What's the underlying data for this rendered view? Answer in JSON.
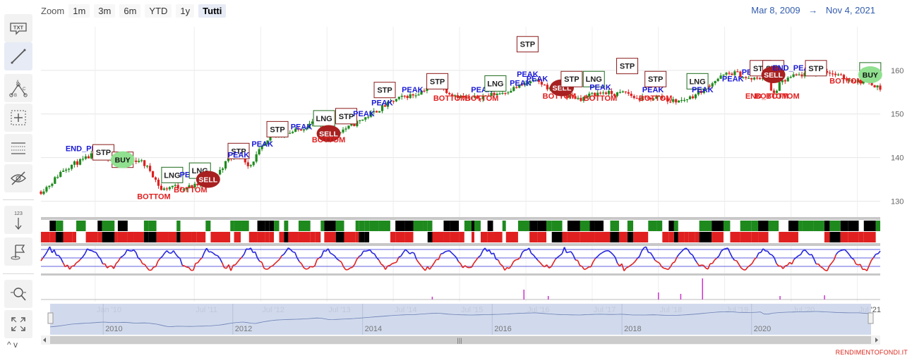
{
  "toolbar": {
    "tools": [
      {
        "name": "annotation-text-tool",
        "icon": "txt-icon",
        "label": "TXT"
      },
      {
        "name": "line-tool",
        "icon": "line-icon"
      },
      {
        "name": "fibonacci-tool",
        "icon": "abc-pattern-icon",
        "labels": [
          "A",
          "B",
          "C"
        ]
      },
      {
        "name": "crosshair-tool",
        "icon": "crosshair-icon"
      },
      {
        "name": "indicators-tool",
        "icon": "indicators-icon"
      },
      {
        "name": "hide-toggle",
        "icon": "eye-slash-icon"
      },
      {
        "name": "vertical-counter-tool",
        "icon": "vertical-counter-icon",
        "label": "123"
      },
      {
        "name": "flag-tool",
        "icon": "flag-icon"
      },
      {
        "name": "zoom-change-tool",
        "icon": "zoom-change-icon"
      },
      {
        "name": "fullscreen-tool",
        "icon": "fullscreen-icon"
      }
    ],
    "scroll_arrows": "^ v"
  },
  "zoom": {
    "label": "Zoom",
    "buttons": [
      "1m",
      "3m",
      "6m",
      "YTD",
      "1y",
      "Tutti"
    ],
    "selected": "Tutti"
  },
  "range": {
    "from": "Mar 8, 2009",
    "arrow": "→",
    "to": "Nov 4, 2021"
  },
  "footer": "RENDIMENTOFONDI.IT",
  "colors": {
    "up": "#1e8a1e",
    "down": "#e02020",
    "signal_label": "#1a1ad6",
    "bottom_label": "#e02020",
    "sell": "#a82020",
    "buy": "#90e090",
    "osc_blue": "#2424e0",
    "osc_red": "#e02020",
    "volume": "#cc33cc",
    "navigator_fill": "#ccd6eb"
  },
  "chart_data": {
    "type": "candlestick",
    "y_ticks": [
      130,
      140,
      150,
      160
    ],
    "ylim": [
      127,
      170
    ],
    "x_start": "2009-03-08",
    "x_end": "2021-11-04",
    "x_ticks": [
      "Jan '10",
      "Jul '11",
      "Jul '12",
      "Jul '13",
      "Jul '14",
      "Jul '15",
      "Jul '16",
      "Jul '17",
      "Jul '18",
      "Jul '19",
      "Jul '20",
      "Jul '21"
    ],
    "x_tick_dates": [
      "2010-01-01",
      "2011-07-01",
      "2012-07-01",
      "2013-07-01",
      "2014-07-01",
      "2015-07-01",
      "2016-07-01",
      "2017-07-01",
      "2018-07-01",
      "2019-07-01",
      "2020-07-01",
      "2021-07-01"
    ],
    "price_series": [
      [
        "2009-03-08",
        132.2
      ],
      [
        "2009-05-01",
        134
      ],
      [
        "2009-07-01",
        137
      ],
      [
        "2009-09-01",
        138.5
      ],
      [
        "2009-11-01",
        139.5
      ],
      [
        "2010-01-01",
        141
      ],
      [
        "2010-03-01",
        140
      ],
      [
        "2010-05-01",
        140.5
      ],
      [
        "2010-07-01",
        139
      ],
      [
        "2010-09-01",
        139.5
      ],
      [
        "2010-11-01",
        137
      ],
      [
        "2011-01-01",
        132.5
      ],
      [
        "2011-03-01",
        133.5
      ],
      [
        "2011-05-01",
        133
      ],
      [
        "2011-07-01",
        133.5
      ],
      [
        "2011-09-01",
        134.2
      ],
      [
        "2011-11-01",
        136
      ],
      [
        "2012-01-01",
        139.5
      ],
      [
        "2012-03-01",
        141
      ],
      [
        "2012-05-01",
        138
      ],
      [
        "2012-07-01",
        142
      ],
      [
        "2012-09-01",
        144.5
      ],
      [
        "2012-11-01",
        145.5
      ],
      [
        "2013-01-01",
        146
      ],
      [
        "2013-03-01",
        147
      ],
      [
        "2013-05-01",
        148.5
      ],
      [
        "2013-07-01",
        145
      ],
      [
        "2013-09-01",
        146
      ],
      [
        "2013-11-01",
        147
      ],
      [
        "2014-01-01",
        148.5
      ],
      [
        "2014-03-01",
        150
      ],
      [
        "2014-05-01",
        151.5
      ],
      [
        "2014-07-01",
        153
      ],
      [
        "2014-09-01",
        154
      ],
      [
        "2014-11-01",
        154.5
      ],
      [
        "2015-01-01",
        156
      ],
      [
        "2015-03-01",
        157
      ],
      [
        "2015-05-01",
        155
      ],
      [
        "2015-07-01",
        154
      ],
      [
        "2015-09-01",
        153.5
      ],
      [
        "2015-11-01",
        154
      ],
      [
        "2016-01-01",
        154.5
      ],
      [
        "2016-03-01",
        155
      ],
      [
        "2016-05-01",
        156
      ],
      [
        "2016-07-01",
        157
      ],
      [
        "2016-09-01",
        157.5
      ],
      [
        "2016-11-01",
        156
      ],
      [
        "2017-01-01",
        154.5
      ],
      [
        "2017-03-01",
        154
      ],
      [
        "2017-05-01",
        153.5
      ],
      [
        "2017-07-01",
        154.5
      ],
      [
        "2017-09-01",
        155
      ],
      [
        "2017-11-01",
        154.5
      ],
      [
        "2018-01-01",
        155
      ],
      [
        "2018-03-01",
        153.5
      ],
      [
        "2018-05-01",
        153.5
      ],
      [
        "2018-07-01",
        154
      ],
      [
        "2018-09-01",
        153
      ],
      [
        "2018-11-01",
        153
      ],
      [
        "2019-01-01",
        154
      ],
      [
        "2019-03-01",
        155.5
      ],
      [
        "2019-05-01",
        157.5
      ],
      [
        "2019-07-01",
        159
      ],
      [
        "2019-09-01",
        159.5
      ],
      [
        "2019-11-01",
        158
      ],
      [
        "2020-01-01",
        158
      ],
      [
        "2020-02-20",
        159
      ],
      [
        "2020-03-20",
        154
      ],
      [
        "2020-05-01",
        157
      ],
      [
        "2020-07-01",
        158.5
      ],
      [
        "2020-09-01",
        159
      ],
      [
        "2020-11-01",
        159.5
      ],
      [
        "2021-01-01",
        160
      ],
      [
        "2021-03-01",
        159
      ],
      [
        "2021-05-01",
        158
      ],
      [
        "2021-07-01",
        157.5
      ],
      [
        "2021-09-01",
        157.5
      ],
      [
        "2021-11-04",
        155.8
      ]
    ],
    "signals": [
      {
        "date": "2009-11-15",
        "label": "END_PEAK",
        "kind": "peak",
        "price": 141.5
      },
      {
        "date": "2010-02-15",
        "label": "STP",
        "kind": "stp",
        "price": 141.2
      },
      {
        "date": "2010-06-01",
        "label": "STP",
        "kind": "stp",
        "price": 139.5
      },
      {
        "date": "2010-06-01",
        "label": "BUY",
        "kind": "buy",
        "price": 139.5
      },
      {
        "date": "2010-11-20",
        "label": "BOTTOM",
        "kind": "bottom",
        "price": 130.5
      },
      {
        "date": "2011-03-01",
        "label": "LNG",
        "kind": "lng",
        "price": 136
      },
      {
        "date": "2011-06-10",
        "label": "BOTTOM",
        "kind": "bottom",
        "price": 132
      },
      {
        "date": "2011-06-10",
        "label": "PEAK",
        "kind": "peak",
        "price": 135.5
      },
      {
        "date": "2011-08-01",
        "label": "LNG",
        "kind": "lng",
        "price": 137
      },
      {
        "date": "2011-09-15",
        "label": "SELL",
        "kind": "sell",
        "price": 135
      },
      {
        "date": "2012-03-01",
        "label": "STP",
        "kind": "stp",
        "price": 141.5
      },
      {
        "date": "2012-03-01",
        "label": "PEAK",
        "kind": "peak",
        "price": 140
      },
      {
        "date": "2012-07-10",
        "label": "PEAK",
        "kind": "peak",
        "price": 142.5
      },
      {
        "date": "2012-10-01",
        "label": "PEAK",
        "kind": "peak",
        "price": 145
      },
      {
        "date": "2012-10-01",
        "label": "STP",
        "kind": "stp",
        "price": 146.5
      },
      {
        "date": "2013-02-10",
        "label": "PEAK",
        "kind": "peak",
        "price": 146.5
      },
      {
        "date": "2013-06-15",
        "label": "LNG",
        "kind": "lng",
        "price": 149
      },
      {
        "date": "2013-07-10",
        "label": "SELL",
        "kind": "sell",
        "price": 145.5
      },
      {
        "date": "2013-07-10",
        "label": "BOTTOM",
        "kind": "bottom",
        "price": 143.5
      },
      {
        "date": "2013-10-15",
        "label": "STP",
        "kind": "stp",
        "price": 149.5
      },
      {
        "date": "2014-01-20",
        "label": "PEAK",
        "kind": "peak",
        "price": 149.5
      },
      {
        "date": "2014-05-01",
        "label": "PEAK",
        "kind": "peak",
        "price": 152
      },
      {
        "date": "2014-05-15",
        "label": "STP",
        "kind": "stp",
        "price": 155.5
      },
      {
        "date": "2014-10-15",
        "label": "PEAK",
        "kind": "peak",
        "price": 155
      },
      {
        "date": "2015-03-01",
        "label": "PEAK",
        "kind": "peak",
        "price": 157.5
      },
      {
        "date": "2015-03-01",
        "label": "STP",
        "kind": "stp",
        "price": 157.5
      },
      {
        "date": "2015-05-10",
        "label": "BOTTOM",
        "kind": "bottom",
        "price": 153
      },
      {
        "date": "2015-11-01",
        "label": "PEAK",
        "kind": "peak",
        "price": 155
      },
      {
        "date": "2015-11-01",
        "label": "BOTTOM",
        "kind": "bottom",
        "price": 153
      },
      {
        "date": "2016-01-15",
        "label": "LNG",
        "kind": "lng",
        "price": 157
      },
      {
        "date": "2016-06-01",
        "label": "PEAK",
        "kind": "peak",
        "price": 156.5
      },
      {
        "date": "2016-07-10",
        "label": "STP",
        "kind": "stp",
        "price": 166
      },
      {
        "date": "2016-07-10",
        "label": "PEAK",
        "kind": "peak",
        "price": 158.5
      },
      {
        "date": "2016-09-01",
        "label": "PEAK",
        "kind": "peak",
        "price": 157.5
      },
      {
        "date": "2017-01-01",
        "label": "BOTTOM",
        "kind": "bottom",
        "price": 153.5
      },
      {
        "date": "2017-01-15",
        "label": "SELL",
        "kind": "sell",
        "price": 156
      },
      {
        "date": "2017-03-10",
        "label": "STP",
        "kind": "stp",
        "price": 158
      },
      {
        "date": "2017-07-10",
        "label": "LNG",
        "kind": "lng",
        "price": 158
      },
      {
        "date": "2017-08-15",
        "label": "PEAK",
        "kind": "peak",
        "price": 155.5
      },
      {
        "date": "2017-08-15",
        "label": "BOTTOM",
        "kind": "bottom",
        "price": 153
      },
      {
        "date": "2018-01-10",
        "label": "STP",
        "kind": "stp",
        "price": 161
      },
      {
        "date": "2018-06-01",
        "label": "PEAK",
        "kind": "peak",
        "price": 155
      },
      {
        "date": "2018-06-15",
        "label": "BOTTOM",
        "kind": "bottom",
        "price": 153
      },
      {
        "date": "2018-06-15",
        "label": "STP",
        "kind": "stp",
        "price": 158
      },
      {
        "date": "2019-02-01",
        "label": "LNG",
        "kind": "lng",
        "price": 157.5
      },
      {
        "date": "2019-03-01",
        "label": "PEAK",
        "kind": "peak",
        "price": 155
      },
      {
        "date": "2019-08-15",
        "label": "PEAK",
        "kind": "peak",
        "price": 157.5
      },
      {
        "date": "2019-12-01",
        "label": "PEAK",
        "kind": "peak",
        "price": 159
      },
      {
        "date": "2020-01-15",
        "label": "STP",
        "kind": "stp",
        "price": 160.5
      },
      {
        "date": "2020-03-15",
        "label": "BOTTOM",
        "kind": "bottom",
        "price": 153.5
      },
      {
        "date": "2020-03-20",
        "label": "END_BOTTOM",
        "kind": "bottom",
        "price": 153.5
      },
      {
        "date": "2020-03-25",
        "label": "STP",
        "kind": "stp",
        "price": 160.5
      },
      {
        "date": "2020-03-25",
        "label": "SELL",
        "kind": "sell",
        "price": 159
      },
      {
        "date": "2020-07-15",
        "label": "END_PEAK",
        "kind": "peak",
        "price": 160
      },
      {
        "date": "2020-11-15",
        "label": "STP",
        "kind": "stp",
        "price": 160.5
      },
      {
        "date": "2021-05-01",
        "label": "BOTTOM",
        "kind": "bottom",
        "price": 157
      },
      {
        "date": "2021-09-10",
        "label": "LNG",
        "kind": "lng",
        "price": 160
      },
      {
        "date": "2021-09-10",
        "label": "BUY",
        "kind": "buy",
        "price": 159
      }
    ],
    "navigator": {
      "year_labels": [
        "2010",
        "2012",
        "2014",
        "2016",
        "2018",
        "2020"
      ],
      "year_dates": [
        "2010-01-01",
        "2012-01-01",
        "2014-01-01",
        "2016-01-01",
        "2018-01-01",
        "2020-01-01"
      ],
      "selection": [
        "2009-03-08",
        "2021-11-04"
      ]
    },
    "grid": true,
    "legend": "none"
  }
}
